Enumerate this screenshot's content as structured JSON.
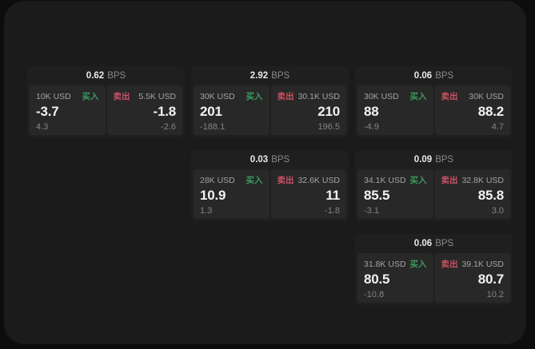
{
  "labels": {
    "buy": "买入",
    "sell": "卖出",
    "bps_unit": "BPS"
  },
  "colors": {
    "page_bg": "#0d0d0d",
    "panel_bg": "#1b1b1b",
    "card_bg": "#1f1f1f",
    "tile_bg": "#282828",
    "buy_green": "#3c9a5f",
    "sell_red": "#cd5064",
    "primary_text": "#f2f2f2",
    "muted_text": "#8a8a8a"
  },
  "cards": [
    {
      "bps": "0.62",
      "buy": {
        "size": "10K USD",
        "price": "-3.7",
        "change": "4.3"
      },
      "sell": {
        "size": "5.5K USD",
        "price": "-1.8",
        "change": "-2.6"
      }
    },
    {
      "bps": "2.92",
      "buy": {
        "size": "30K USD",
        "price": "201",
        "change": "-188.1"
      },
      "sell": {
        "size": "30.1K USD",
        "price": "210",
        "change": "196.5"
      }
    },
    {
      "bps": "0.06",
      "buy": {
        "size": "30K USD",
        "price": "88",
        "change": "-4.9"
      },
      "sell": {
        "size": "30K USD",
        "price": "88.2",
        "change": "4.7"
      }
    },
    {
      "bps": "0.03",
      "buy": {
        "size": "28K USD",
        "price": "10.9",
        "change": "1.3"
      },
      "sell": {
        "size": "32.6K USD",
        "price": "11",
        "change": "-1.8"
      }
    },
    {
      "bps": "0.09",
      "buy": {
        "size": "34.1K USD",
        "price": "85.5",
        "change": "-3.1"
      },
      "sell": {
        "size": "32.8K USD",
        "price": "85.8",
        "change": "3.0"
      }
    },
    {
      "bps": "0.06",
      "buy": {
        "size": "31.8K USD",
        "price": "80.5",
        "change": "-10.8"
      },
      "sell": {
        "size": "39.1K USD",
        "price": "80.7",
        "change": "10.2"
      }
    }
  ]
}
